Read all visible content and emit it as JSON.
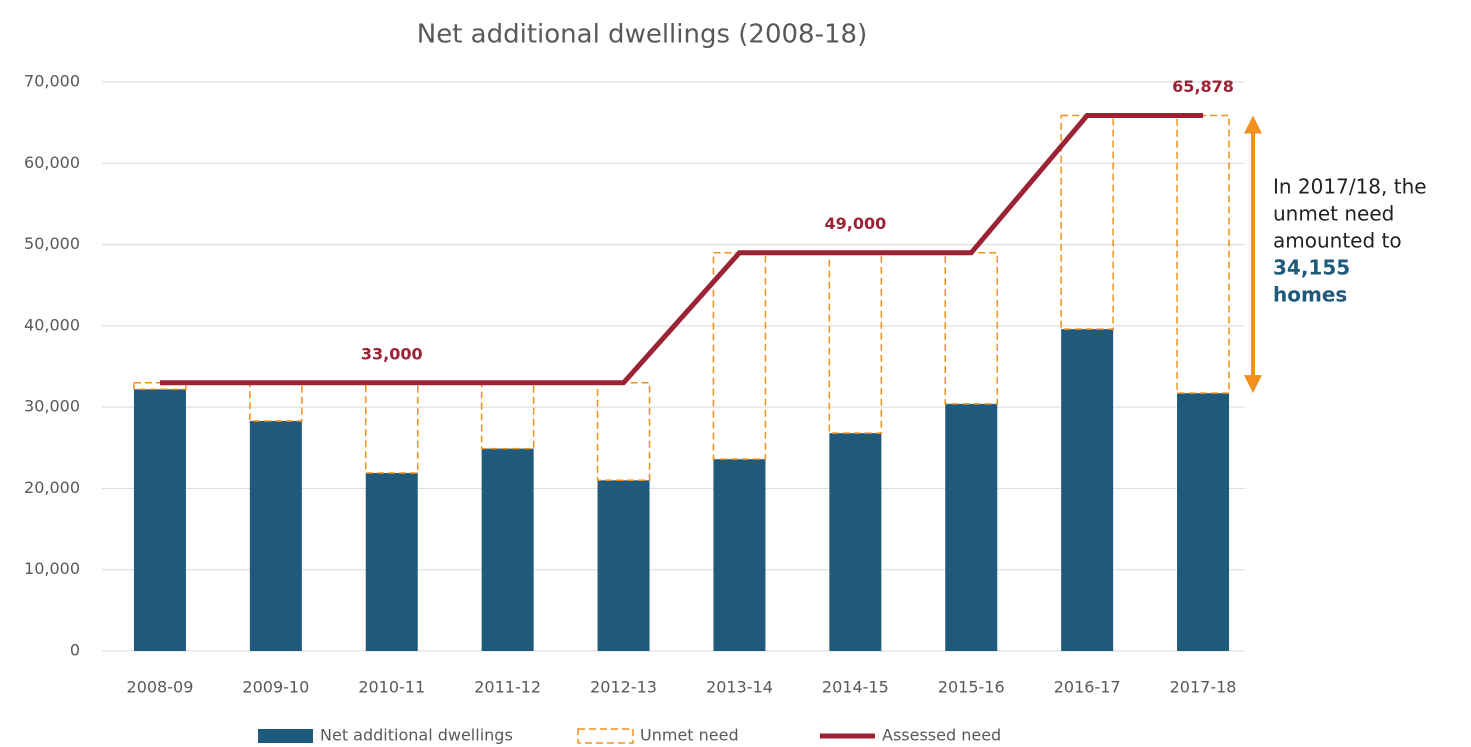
{
  "chart_data": {
    "type": "bar",
    "title": "Net additional dwellings (2008-18)",
    "categories": [
      "2008-09",
      "2009-10",
      "2010-11",
      "2011-12",
      "2012-13",
      "2013-14",
      "2014-15",
      "2015-16",
      "2016-17",
      "2017-18"
    ],
    "stacked": true,
    "series": [
      {
        "name": "Net additional dwellings",
        "type": "bar",
        "color": "#1f5a7d",
        "values": [
          32200,
          28300,
          21900,
          24900,
          21000,
          23600,
          26800,
          30400,
          39600,
          31723
        ]
      },
      {
        "name": "Unmet need",
        "type": "bar",
        "style": "dashed",
        "color": "#f0901e",
        "values": [
          800,
          4700,
          11100,
          8100,
          12000,
          25400,
          22200,
          18600,
          26278,
          34155
        ]
      },
      {
        "name": "Assessed need",
        "type": "line",
        "color": "#9b2335",
        "values": [
          33000,
          33000,
          33000,
          33000,
          33000,
          49000,
          49000,
          49000,
          65878,
          65878
        ],
        "value_labels": [
          null,
          null,
          "33,000",
          null,
          null,
          null,
          "49,000",
          null,
          null,
          "65,878"
        ]
      }
    ],
    "ylim": [
      0,
      70000
    ],
    "yticks": [
      0,
      {
        "value": 10000,
        "label": "10,000"
      },
      {
        "value": 20000,
        "label": "20,000"
      },
      {
        "value": 30000,
        "label": "30,000"
      },
      {
        "value": 40000,
        "label": "40,000"
      },
      {
        "value": 50000,
        "label": "50,000"
      },
      {
        "value": 60000,
        "label": "60,000"
      },
      {
        "value": 70000,
        "label": "70,000"
      }
    ],
    "grid": true,
    "legend": "bottom",
    "annotation": {
      "lines": [
        "In 2017/18, the",
        "unmet need",
        "amounted to"
      ],
      "highlight": [
        "34,155",
        "homes"
      ],
      "color": "#f0901e",
      "highlight_color": "#1f5a7d"
    }
  }
}
